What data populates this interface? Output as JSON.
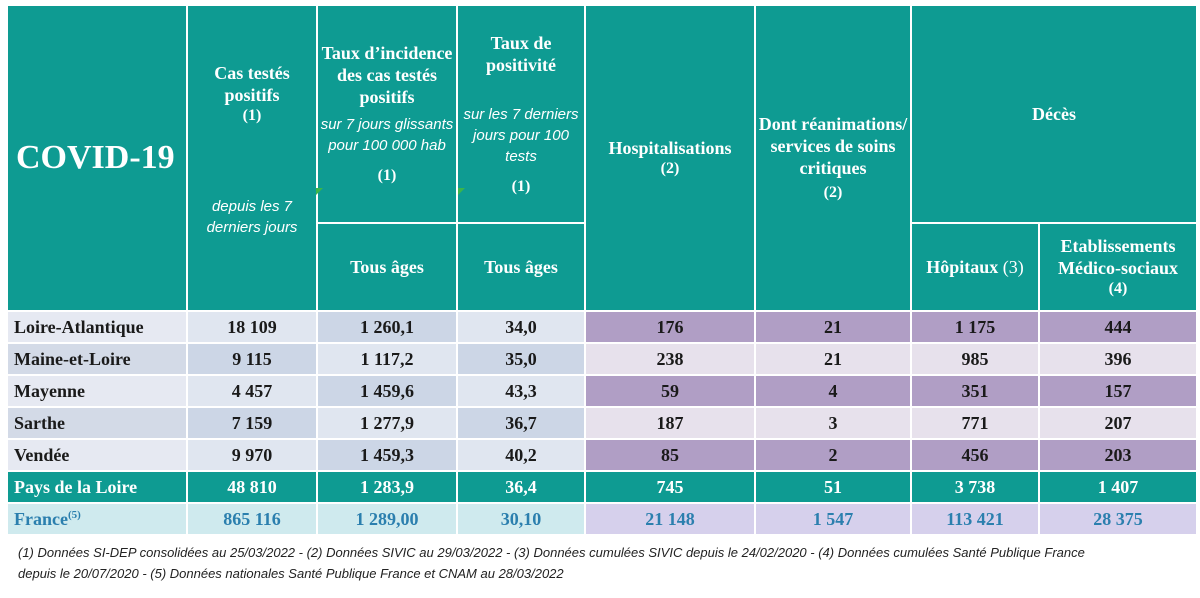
{
  "title": "COVID-19",
  "headers": {
    "cas": {
      "title": "Cas testés positifs",
      "note": "(1)",
      "sub": "depuis les 7 derniers jours"
    },
    "taux_incidence": {
      "title": "Taux d’incidence des cas testés positifs",
      "sub": "sur 7 jours glissants pour 100 000 hab",
      "note": "(1)",
      "age": "Tous âges"
    },
    "taux_positivite": {
      "title": "Taux de positivité",
      "sub": "sur les 7 derniers jours pour 100 tests",
      "note": "(1)",
      "age": "Tous âges"
    },
    "hospitalisations": {
      "title": "Hospitalisations",
      "note": "(2)"
    },
    "reanimations": {
      "title": "Dont réanimations/ services de soins critiques",
      "note": "(2)"
    },
    "deces": {
      "title": "Décès",
      "hopitaux": "Hôpitaux",
      "hopitaux_note": "(3)",
      "ems": "Etablissements Médico-sociaux",
      "ems_note": "(4)"
    }
  },
  "rows": [
    {
      "label": "Loire-Atlantique",
      "cas": "18 109",
      "incidence": "1 260,1",
      "positivite": "34,0",
      "hosp": "176",
      "rea": "21",
      "hopitaux": "1 175",
      "ems": "444"
    },
    {
      "label": "Maine-et-Loire",
      "cas": "9 115",
      "incidence": "1 117,2",
      "positivite": "35,0",
      "hosp": "238",
      "rea": "21",
      "hopitaux": "985",
      "ems": "396"
    },
    {
      "label": "Mayenne",
      "cas": "4 457",
      "incidence": "1 459,6",
      "positivite": "43,3",
      "hosp": "59",
      "rea": "4",
      "hopitaux": "351",
      "ems": "157"
    },
    {
      "label": "Sarthe",
      "cas": "7 159",
      "incidence": "1 277,9",
      "positivite": "36,7",
      "hosp": "187",
      "rea": "3",
      "hopitaux": "771",
      "ems": "207"
    },
    {
      "label": "Vendée",
      "cas": "9 970",
      "incidence": "1 459,3",
      "positivite": "40,2",
      "hosp": "85",
      "rea": "2",
      "hopitaux": "456",
      "ems": "203"
    }
  ],
  "region": {
    "label": "Pays de la Loire",
    "cas": "48 810",
    "incidence": "1 283,9",
    "positivite": "36,4",
    "hosp": "745",
    "rea": "51",
    "hopitaux": "3 738",
    "ems": "1 407"
  },
  "france": {
    "label": "France",
    "sup": "(5)",
    "cas": "865 116",
    "incidence": "1 289,00",
    "positivite": "30,10",
    "hosp": "21 148",
    "rea": "1 547",
    "hopitaux": "113 421",
    "ems": "28 375"
  },
  "footnote": {
    "line1": "(1) Données SI-DEP consolidées  au 25/03/2022 -  (2) Données SIVIC au 29/03/2022 - (3) Données cumulées SIVIC depuis le 24/02/2020 - (4) Données cumulées Santé Publique France",
    "line2": "depuis le 20/07/2020 - (5) Données nationales Santé Publique France et CNAM au 28/03/2022"
  }
}
